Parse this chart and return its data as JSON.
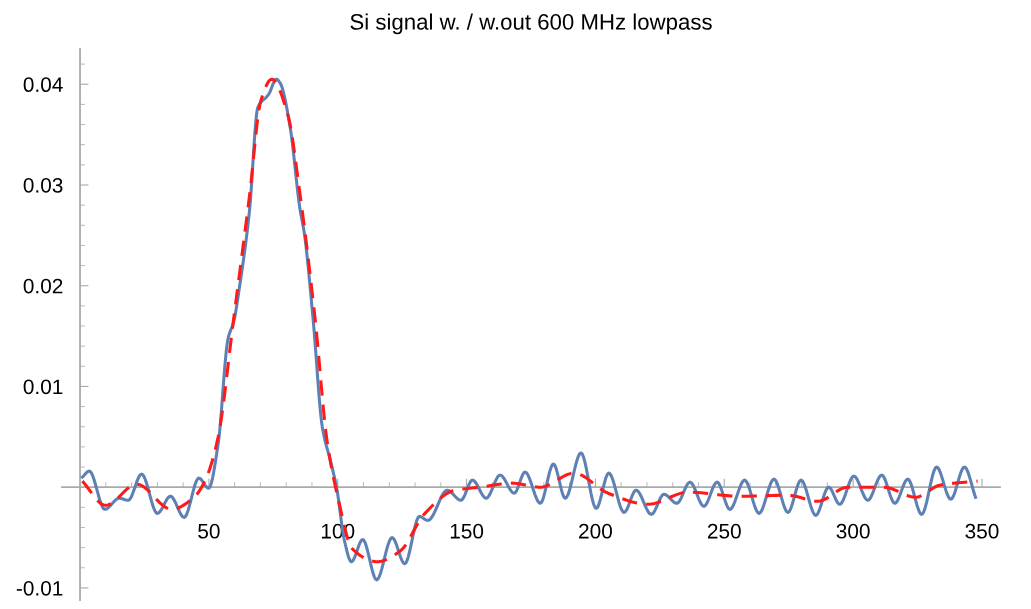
{
  "chart_data": {
    "type": "line",
    "title": "Si signal w. / w.out 600 MHz lowpass",
    "xlim": [
      -7,
      357
    ],
    "ylim": [
      -0.0112,
      0.0435
    ],
    "xticks": [
      {
        "value": 10,
        "label": null
      },
      {
        "value": 20,
        "label": null
      },
      {
        "value": 30,
        "label": null
      },
      {
        "value": 40,
        "label": null
      },
      50,
      {
        "value": 60,
        "label": null
      },
      {
        "value": 70,
        "label": null
      },
      {
        "value": 80,
        "label": null
      },
      {
        "value": 90,
        "label": null
      },
      100,
      {
        "value": 110,
        "label": null
      },
      {
        "value": 120,
        "label": null
      },
      {
        "value": 130,
        "label": null
      },
      {
        "value": 140,
        "label": null
      },
      150,
      {
        "value": 160,
        "label": null
      },
      {
        "value": 170,
        "label": null
      },
      {
        "value": 180,
        "label": null
      },
      {
        "value": 190,
        "label": null
      },
      200,
      {
        "value": 210,
        "label": null
      },
      {
        "value": 220,
        "label": null
      },
      {
        "value": 230,
        "label": null
      },
      {
        "value": 240,
        "label": null
      },
      250,
      {
        "value": 260,
        "label": null
      },
      {
        "value": 270,
        "label": null
      },
      {
        "value": 280,
        "label": null
      },
      {
        "value": 290,
        "label": null
      },
      300,
      {
        "value": 310,
        "label": null
      },
      {
        "value": 320,
        "label": null
      },
      {
        "value": 330,
        "label": null
      },
      {
        "value": 340,
        "label": null
      },
      350
    ],
    "yticks": [
      {
        "value": -0.01,
        "label": "-0.01"
      },
      {
        "value": -0.008,
        "label": null
      },
      {
        "value": -0.006,
        "label": null
      },
      {
        "value": -0.004,
        "label": null
      },
      {
        "value": -0.002,
        "label": null
      },
      {
        "value": 0.002,
        "label": null
      },
      {
        "value": 0.004,
        "label": null
      },
      {
        "value": 0.006,
        "label": null
      },
      {
        "value": 0.008,
        "label": null
      },
      0.01,
      {
        "value": 0.012,
        "label": null
      },
      {
        "value": 0.014,
        "label": null
      },
      {
        "value": 0.016,
        "label": null
      },
      {
        "value": 0.018,
        "label": null
      },
      0.02,
      {
        "value": 0.022,
        "label": null
      },
      {
        "value": 0.024,
        "label": null
      },
      {
        "value": 0.026,
        "label": null
      },
      {
        "value": 0.028,
        "label": null
      },
      0.03,
      {
        "value": 0.032,
        "label": null
      },
      {
        "value": 0.034,
        "label": null
      },
      {
        "value": 0.036,
        "label": null
      },
      {
        "value": 0.038,
        "label": null
      },
      0.04,
      {
        "value": 0.042,
        "label": null
      }
    ],
    "grid": false,
    "series": [
      {
        "color": "#5e81b5",
        "line_style": "solid",
        "x": [
          0.9,
          3.6,
          9.6,
          15.2,
          18.7,
          23.9,
          30,
          35.1,
          40.4,
          46.1,
          49.9,
          53.6,
          57.4,
          59.7,
          61.9,
          65.7,
          69,
          73.2,
          76.2,
          77.7,
          81.5,
          85.3,
          87.1,
          90.5,
          94,
          97.3,
          99.6,
          102.6,
          105.3,
          109.7,
          115.1,
          121.1,
          126,
          131.7,
          135,
          142.5,
          147.8,
          152.3,
          157.6,
          163,
          168.5,
          172.7,
          178.6,
          183.7,
          188.3,
          194.4,
          200.3,
          205.2,
          211.1,
          215.8,
          221.7,
          226.6,
          231.6,
          236.7,
          242.1,
          247.2,
          252.2,
          257.9,
          263.5,
          269.3,
          274.7,
          279.8,
          285.5,
          290.5,
          294.8,
          300.3,
          305.7,
          311.1,
          316.2,
          321.2,
          326.6,
          332.4,
          337.9,
          343.2,
          347.5
        ],
        "values": [
          0.001,
          0.0016,
          -0.0022,
          -0.0011,
          -0.0013,
          0.0013,
          -0.0026,
          -0.0009,
          -0.003,
          0.0009,
          -0.0001,
          0.0043,
          0.0147,
          0.0165,
          0.0199,
          0.0273,
          0.0377,
          0.039,
          0.0405,
          0.0401,
          0.0358,
          0.0277,
          0.0251,
          0.0165,
          0.006,
          0.0025,
          -0.0001,
          -0.0053,
          -0.0074,
          -0.0052,
          -0.0092,
          -0.005,
          -0.0076,
          -0.0029,
          -0.0033,
          -0.0003,
          -0.0013,
          0.0007,
          -0.0011,
          0.0012,
          -0.0006,
          0.0015,
          -0.0016,
          0.0023,
          -0.0011,
          0.0034,
          -0.0021,
          0.0014,
          -0.0025,
          -0.0003,
          -0.0027,
          -0.0007,
          -0.0016,
          0.0005,
          -0.0019,
          0.0005,
          -0.0022,
          0.0007,
          -0.0026,
          0.0008,
          -0.0025,
          0.0007,
          -0.0028,
          0.0,
          -0.0017,
          0.0011,
          -0.0013,
          0.0012,
          -0.0016,
          0.0008,
          -0.0027,
          0.002,
          -0.0012,
          0.002,
          -0.001
        ]
      },
      {
        "color": "#ff1a1a",
        "line_style": "dashed",
        "x": [
          0.9,
          9.9,
          22,
          35.5,
          44.6,
          49.1,
          53.6,
          59.7,
          65.7,
          70.2,
          74.4,
          80.7,
          85.3,
          91.3,
          95.8,
          100.3,
          105.6,
          115.4,
          124.4,
          133.5,
          145.5,
          155.3,
          167.7,
          178.6,
          191.7,
          204.9,
          220.4,
          235.9,
          256.1,
          274.7,
          286.3,
          297.9,
          311.9,
          324.3,
          333.6,
          348.3
        ],
        "values": [
          0.0006,
          -0.0018,
          0.0003,
          -0.0022,
          -0.0009,
          0.001,
          0.005,
          0.0169,
          0.0288,
          0.0384,
          0.0405,
          0.0369,
          0.0292,
          0.0165,
          0.0047,
          -0.0013,
          -0.0061,
          -0.0074,
          -0.0063,
          -0.0027,
          -0.0003,
          0.0,
          0.0004,
          0.0,
          0.0014,
          -0.0006,
          -0.0017,
          -0.0005,
          -0.0009,
          -0.0008,
          -0.0014,
          0.0,
          0.0,
          -0.001,
          0.0002,
          0.0006
        ]
      }
    ]
  }
}
